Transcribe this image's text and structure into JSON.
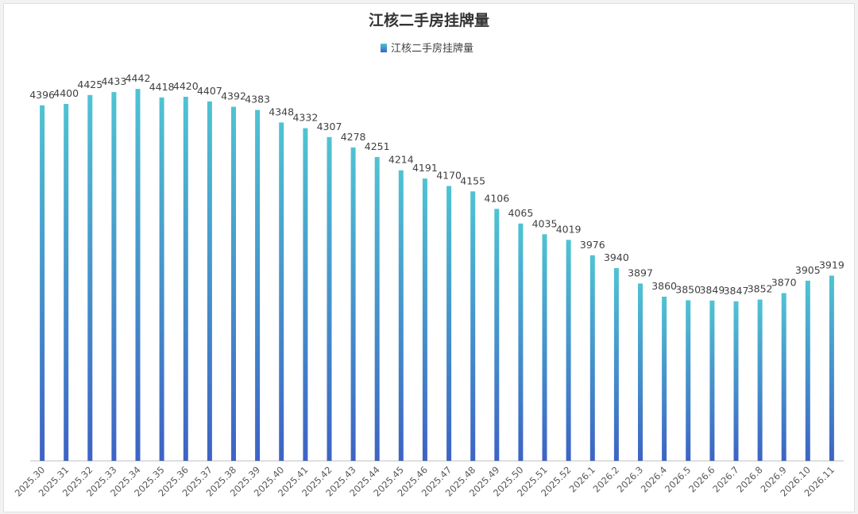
{
  "chart_data": {
    "type": "bar",
    "title": "江核二手房挂牌量",
    "legend": {
      "position": "top",
      "label": "江核二手房挂牌量"
    },
    "xlabel": "",
    "ylabel": "",
    "ylim": [
      3400,
      4500
    ],
    "grid": false,
    "categories": [
      "2025.30",
      "2025.31",
      "2025.32",
      "2025.33",
      "2025.34",
      "2025.35",
      "2025.36",
      "2025.37",
      "2025.38",
      "2025.39",
      "2025.40",
      "2025.41",
      "2025.42",
      "2025.43",
      "2025.44",
      "2025.45",
      "2025.46",
      "2025.47",
      "2025.48",
      "2025.49",
      "2025.50",
      "2025.51",
      "2025.52",
      "2026.1",
      "2026.2",
      "2026.3",
      "2026.4",
      "2026.5",
      "2026.6",
      "2026.7",
      "2026.8",
      "2026.9",
      "2026.10",
      "2026.11"
    ],
    "series": [
      {
        "name": "江核二手房挂牌量",
        "values": [
          4396,
          4400,
          4425,
          4433,
          4442,
          4418,
          4420,
          4407,
          4392,
          4383,
          4348,
          4332,
          4307,
          4278,
          4251,
          4214,
          4191,
          4170,
          4155,
          4106,
          4065,
          4035,
          4019,
          3976,
          3940,
          3897,
          3860,
          3850,
          3849,
          3847,
          3852,
          3870,
          3905,
          3919
        ]
      }
    ],
    "colors": {
      "bar_top": "#4fc3d3",
      "bar_bottom": "#3d63c4",
      "label": "#404040",
      "axis": "#bfbfbf"
    }
  }
}
